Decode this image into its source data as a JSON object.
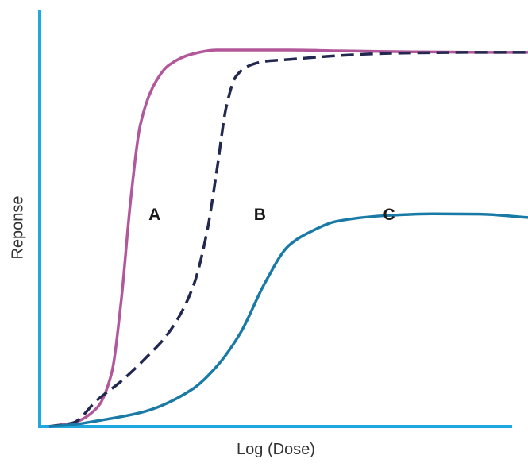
{
  "chart_data": {
    "type": "line",
    "title": "",
    "xlabel": "Log (Dose)",
    "ylabel": "Reponse",
    "xlim": [
      0,
      100
    ],
    "ylim": [
      0,
      100
    ],
    "grid": false,
    "legend": "none",
    "colors": {
      "axis": "#1fa8e0",
      "A": "#b2589a",
      "B": "#22284f",
      "C": "#1a7aa6"
    },
    "series": [
      {
        "name": "A",
        "style": "solid",
        "x": [
          0,
          5,
          10,
          13,
          15,
          17,
          19,
          22,
          25,
          30,
          35,
          40,
          45,
          50,
          60,
          70,
          80,
          90,
          100
        ],
        "values": [
          0,
          1,
          5,
          14,
          33,
          60,
          80,
          91,
          96,
          99,
          100,
          100,
          100,
          100,
          99.8,
          99.6,
          99.5,
          99.4,
          99.4
        ]
      },
      {
        "name": "B",
        "style": "dashed",
        "x": [
          0,
          5,
          10,
          15,
          20,
          25,
          30,
          33,
          35,
          37,
          39,
          42,
          45,
          50,
          60,
          70,
          80,
          90,
          100
        ],
        "values": [
          0,
          1,
          7,
          12,
          18,
          25,
          37,
          52,
          68,
          85,
          93,
          96,
          97,
          97.5,
          98.5,
          99.1,
          99.3,
          99.4,
          99.4
        ]
      },
      {
        "name": "C",
        "style": "solid",
        "x": [
          0,
          5,
          10,
          20,
          30,
          35,
          40,
          45,
          50,
          55,
          60,
          70,
          80,
          90,
          100
        ],
        "values": [
          0,
          0.5,
          1.5,
          4,
          10,
          16,
          25,
          38,
          48,
          52,
          54.5,
          56,
          56.5,
          56.4,
          55.5
        ]
      }
    ],
    "annotations": [
      {
        "text": "A",
        "x": 22,
        "y": 56
      },
      {
        "text": "B",
        "x": 44,
        "y": 56
      },
      {
        "text": "C",
        "x": 71,
        "y": 56
      }
    ]
  }
}
